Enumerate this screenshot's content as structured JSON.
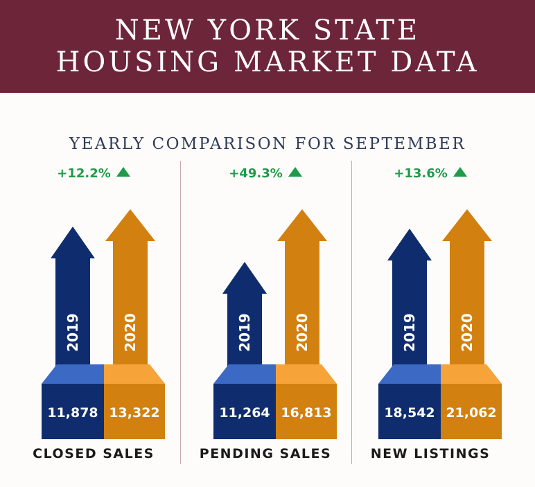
{
  "header": {
    "title_line1": "NEW YORK STATE",
    "title_line2": "HOUSING MARKET DATA"
  },
  "subtitle": "YEARLY COMPARISON FOR SEPTEMBER",
  "colors": {
    "banner": "#6d2539",
    "series_2019": "#0f2d6e",
    "series_2019_top": "#3b69c4",
    "series_2020": "#d2800f",
    "series_2020_top": "#f6a339",
    "increase": "#1f9a4a"
  },
  "chart_data": [
    {
      "type": "bar",
      "label": "CLOSED SALES",
      "change": "+12.2%",
      "change_icon": "up-triangle-icon",
      "series": [
        {
          "name": "2019",
          "value": 11878,
          "display": "11,878"
        },
        {
          "name": "2020",
          "value": 13322,
          "display": "13,322"
        }
      ]
    },
    {
      "type": "bar",
      "label": "PENDING SALES",
      "change": "+49.3%",
      "change_icon": "up-triangle-icon",
      "series": [
        {
          "name": "2019",
          "value": 11264,
          "display": "11,264"
        },
        {
          "name": "2020",
          "value": 16813,
          "display": "16,813"
        }
      ]
    },
    {
      "type": "bar",
      "label": "NEW LISTINGS",
      "change": "+13.6%",
      "change_icon": "up-triangle-icon",
      "series": [
        {
          "name": "2019",
          "value": 18542,
          "display": "18,542"
        },
        {
          "name": "2020",
          "value": 21062,
          "display": "21,062"
        }
      ]
    }
  ]
}
